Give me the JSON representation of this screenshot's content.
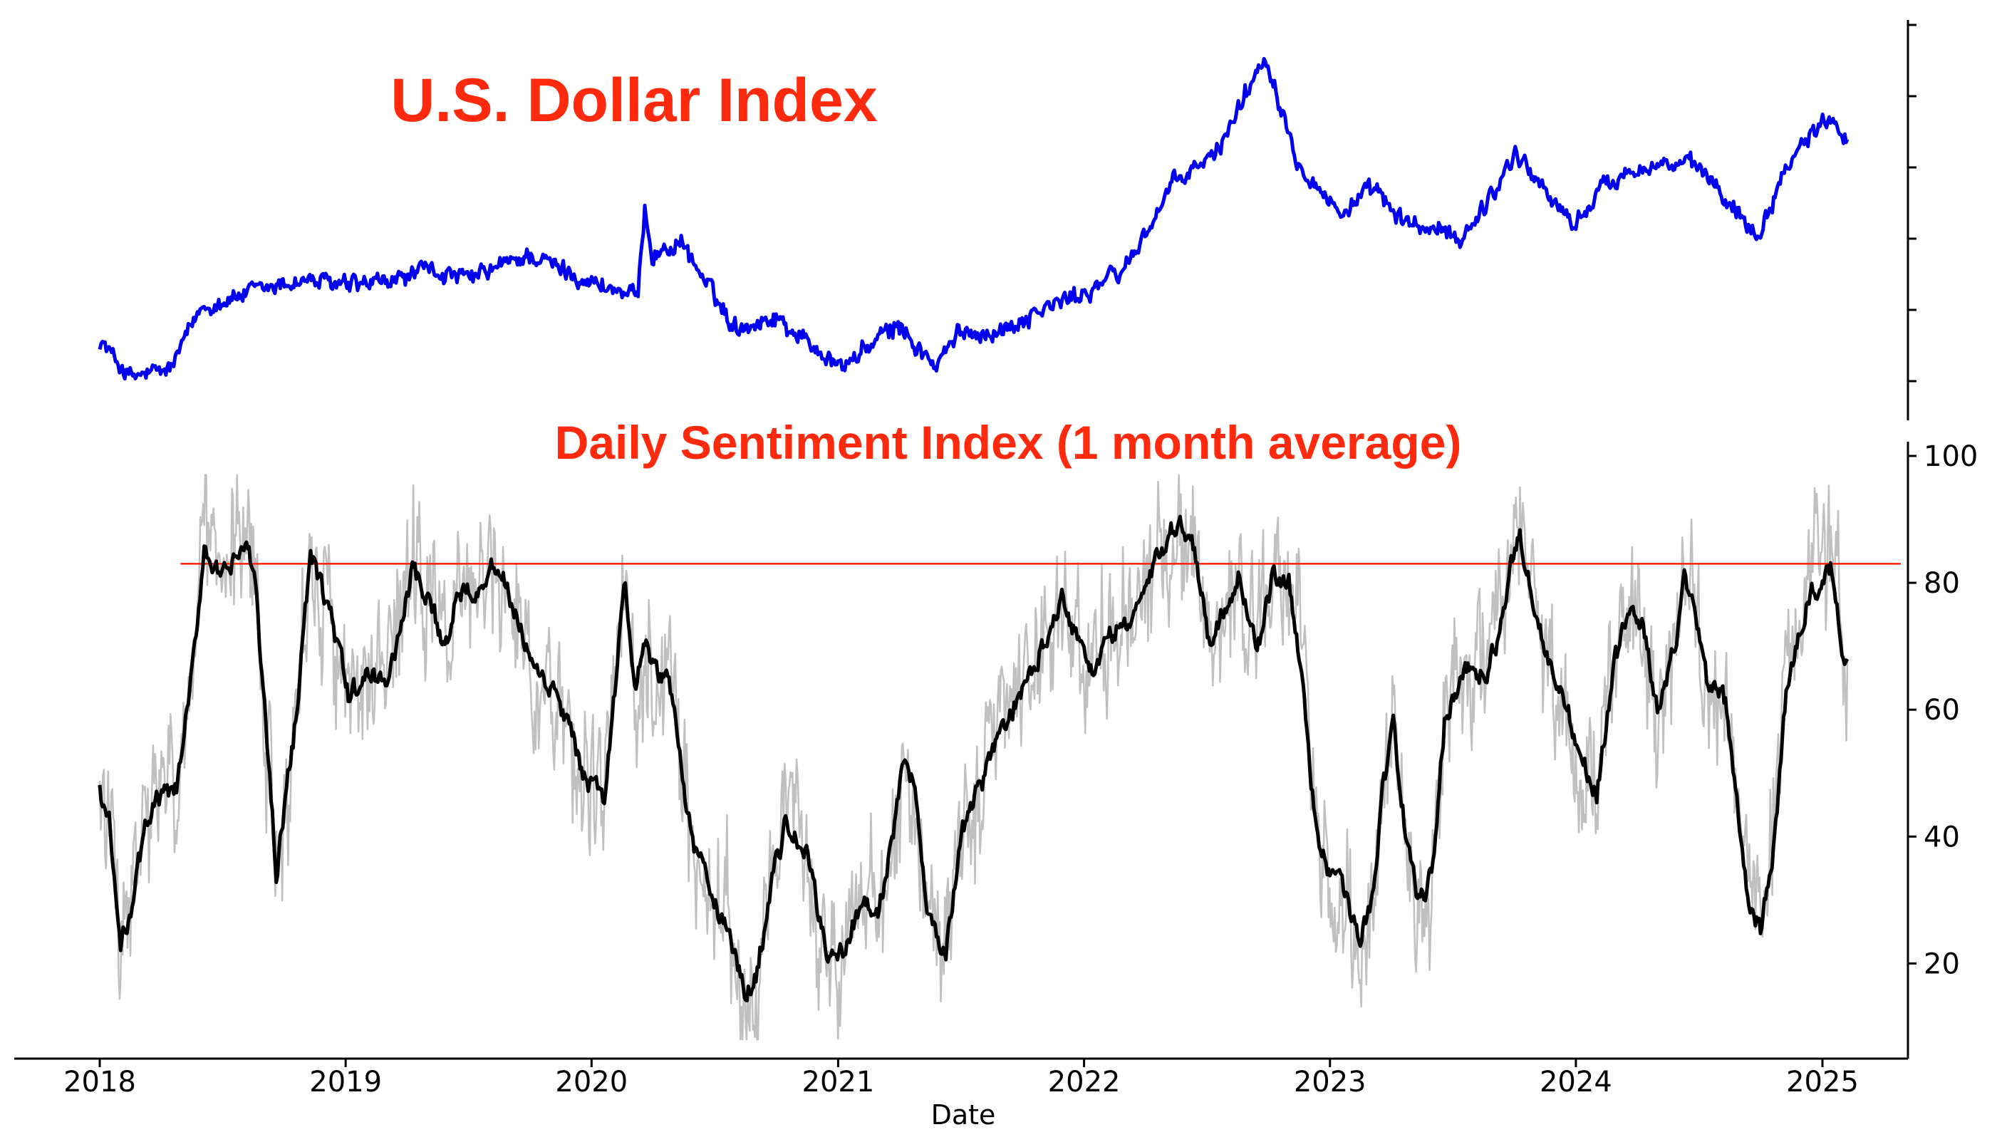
{
  "chart_data": [
    {
      "type": "line",
      "title": "U.S. Dollar Index",
      "x_range": [
        "2018-01-01",
        "2025-02-01"
      ],
      "ylim": [
        87,
        116
      ],
      "y_axis_tick_labels_shown": false,
      "colors": {
        "line": "#0000ee",
        "title": "#ff2a0d"
      },
      "series": [
        {
          "x": [
            "2018-01-01",
            "2018-02-15",
            "2018-04-15",
            "2018-06-01",
            "2018-08-15",
            "2018-11-01",
            "2019-01-01",
            "2019-03-01",
            "2019-05-01",
            "2019-07-01",
            "2019-10-01",
            "2020-01-01",
            "2020-03-10",
            "2020-03-20",
            "2020-03-31",
            "2020-05-15",
            "2020-06-15",
            "2020-08-01",
            "2020-10-01",
            "2021-01-05",
            "2021-03-31",
            "2021-05-25",
            "2021-07-01",
            "2021-09-01",
            "2021-10-15",
            "2021-12-31",
            "2022-03-01",
            "2022-05-15",
            "2022-07-15",
            "2022-09-27",
            "2022-11-15",
            "2023-01-15",
            "2023-03-08",
            "2023-04-15",
            "2023-07-15",
            "2023-09-01",
            "2023-10-03",
            "2023-12-28",
            "2024-02-15",
            "2024-04-15",
            "2024-07-01",
            "2024-09-27",
            "2024-11-15",
            "2025-01-13",
            "2025-02-07"
          ],
          "values": [
            92,
            89,
            89.6,
            94.6,
            95.8,
            96.8,
            96.3,
            96.5,
            97.6,
            96.8,
            98.8,
            96.6,
            95.4,
            102.8,
            98.7,
            99.8,
            96.8,
            93.0,
            93.8,
            89.8,
            93.2,
            89.8,
            92.6,
            92.7,
            94.1,
            95.7,
            97.6,
            104.5,
            106.8,
            114.8,
            106.3,
            102.1,
            104.0,
            101.5,
            100.1,
            103.8,
            107.0,
            101.1,
            104.5,
            106.1,
            105.8,
            100.4,
            106.7,
            110.0,
            108.0
          ]
        }
      ]
    },
    {
      "type": "line",
      "title": "Daily Sentiment Index (1 month average)",
      "xlabel": "Date",
      "x_range": [
        "2018-01-01",
        "2025-02-01"
      ],
      "x_ticks": [
        "2018",
        "2019",
        "2020",
        "2021",
        "2022",
        "2023",
        "2024",
        "2025"
      ],
      "ylim": [
        5,
        100
      ],
      "y_ticks": [
        20,
        40,
        60,
        80,
        100
      ],
      "reference_line": {
        "y": 83,
        "color": "#ff2200"
      },
      "colors": {
        "average": "#000000",
        "daily": "#c0c0c0"
      },
      "series": [
        {
          "role": "1 month average",
          "x": [
            "2018-01-01",
            "2018-01-15",
            "2018-02-01",
            "2018-02-20",
            "2018-03-15",
            "2018-04-01",
            "2018-04-25",
            "2018-05-20",
            "2018-06-05",
            "2018-07-01",
            "2018-08-05",
            "2018-08-20",
            "2018-09-20",
            "2018-10-15",
            "2018-11-10",
            "2018-12-10",
            "2019-01-05",
            "2019-02-10",
            "2019-03-05",
            "2019-04-10",
            "2019-05-05",
            "2019-06-01",
            "2019-06-15",
            "2019-07-20",
            "2019-08-15",
            "2019-09-10",
            "2019-10-10",
            "2019-11-05",
            "2019-12-01",
            "2019-12-25",
            "2020-01-20",
            "2020-02-20",
            "2020-03-05",
            "2020-03-20",
            "2020-04-10",
            "2020-04-25",
            "2020-05-15",
            "2020-06-01",
            "2020-06-15",
            "2020-07-01",
            "2020-07-20",
            "2020-08-15",
            "2020-09-01",
            "2020-09-25",
            "2020-10-15",
            "2020-11-15",
            "2020-12-15",
            "2021-01-10",
            "2021-02-01",
            "2021-03-01",
            "2021-03-20",
            "2021-04-10",
            "2021-04-25",
            "2021-05-15",
            "2021-06-10",
            "2021-07-01",
            "2021-08-01",
            "2021-09-01",
            "2021-09-25",
            "2021-10-15",
            "2021-11-05",
            "2021-12-01",
            "2021-12-20",
            "2022-01-15",
            "2022-02-10",
            "2022-03-10",
            "2022-04-15",
            "2022-05-10",
            "2022-06-10",
            "2022-07-05",
            "2022-07-25",
            "2022-08-20",
            "2022-09-15",
            "2022-10-10",
            "2022-11-01",
            "2022-11-20",
            "2022-12-10",
            "2023-01-05",
            "2023-01-25",
            "2023-02-15",
            "2023-03-05",
            "2023-03-20",
            "2023-04-05",
            "2023-04-25",
            "2023-05-15",
            "2023-06-01",
            "2023-06-20",
            "2023-07-15",
            "2023-08-01",
            "2023-08-20",
            "2023-09-10",
            "2023-09-25",
            "2023-10-10",
            "2023-11-01",
            "2023-11-25",
            "2023-12-15",
            "2024-01-10",
            "2024-02-01",
            "2024-02-25",
            "2024-03-20",
            "2024-04-10",
            "2024-05-01",
            "2024-05-20",
            "2024-06-10",
            "2024-06-25",
            "2024-07-15",
            "2024-08-10",
            "2024-08-25",
            "2024-09-10",
            "2024-10-01",
            "2024-10-20",
            "2024-11-10",
            "2024-12-10",
            "2024-12-28",
            "2025-01-15",
            "2025-02-01",
            "2025-02-07"
          ],
          "values": [
            47,
            42,
            22,
            31,
            44,
            46,
            47,
            67,
            86,
            80,
            86,
            80,
            35,
            55,
            84,
            75,
            62,
            66,
            64,
            82,
            76,
            70,
            79,
            80,
            83,
            75,
            65,
            63,
            56,
            48,
            46,
            80,
            63,
            70,
            64,
            66,
            50,
            37,
            36,
            29,
            26,
            15,
            18,
            33,
            42,
            37,
            22,
            22,
            29,
            28,
            38,
            52,
            48,
            28,
            21,
            40,
            48,
            57,
            62,
            65,
            72,
            78,
            72,
            66,
            72,
            74,
            82,
            89,
            88,
            71,
            75,
            82,
            68,
            82,
            80,
            66,
            42,
            33,
            31,
            23,
            31,
            47,
            57,
            39,
            29,
            34,
            58,
            66,
            67,
            65,
            72,
            82,
            88,
            76,
            66,
            62,
            52,
            47,
            66,
            76,
            73,
            60,
            66,
            80,
            76,
            64,
            61,
            48,
            32,
            25,
            38,
            64,
            78,
            79,
            82,
            70,
            68
          ]
        },
        {
          "role": "daily",
          "values_range": [
            8,
            97
          ]
        }
      ]
    }
  ]
}
